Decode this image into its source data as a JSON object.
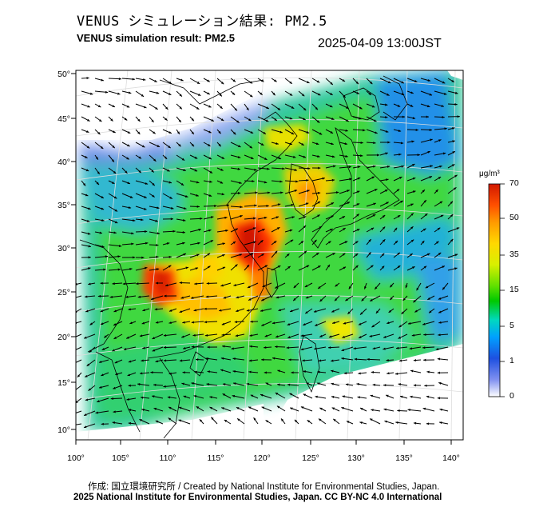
{
  "header": {
    "title_jp": "VENUS シミュレーション結果: PM2.5",
    "title_en": "VENUS simulation result: PM2.5",
    "timestamp": "2025-04-09 13:00JST"
  },
  "map": {
    "lon_ticks": [
      "100°",
      "105°",
      "110°",
      "115°",
      "120°",
      "125°",
      "130°",
      "135°",
      "140°"
    ],
    "lat_ticks": [
      "50°",
      "45°",
      "40°",
      "35°",
      "30°",
      "25°",
      "20°",
      "15°",
      "10°"
    ],
    "lon_range": [
      100,
      141
    ],
    "lat_range": [
      9,
      51
    ]
  },
  "colorbar": {
    "unit": "μg/m³",
    "ticks": [
      "70",
      "50",
      "35",
      "15",
      "5",
      "1",
      "0"
    ],
    "colors": [
      "#d11800",
      "#ff6a00",
      "#ffcc00",
      "#f0f000",
      "#60e000",
      "#00c000",
      "#00d8c0",
      "#0090ff",
      "#1e50e0",
      "#7080f0",
      "#ffffff"
    ]
  },
  "footer": {
    "credit_jp": "作成: 国立環境研究所 / Created by National Institute for Environmental Studies, Japan.",
    "copyright": "2025 National Institute for Environmental Studies, Japan. CC BY-NC 4.0 International"
  }
}
